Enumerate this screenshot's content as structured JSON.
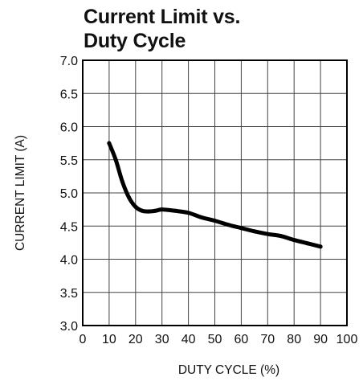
{
  "chart_data": {
    "type": "line",
    "title": [
      "Current Limit vs.",
      "Duty Cycle"
    ],
    "xlabel": "DUTY CYCLE (%)",
    "ylabel": "CURRENT LIMIT (A)",
    "xlim": [
      0,
      100
    ],
    "ylim": [
      3.0,
      7.0
    ],
    "x_ticks": [
      "0",
      "10",
      "20",
      "30",
      "40",
      "50",
      "60",
      "70",
      "80",
      "90",
      "100"
    ],
    "y_ticks": [
      "3.0",
      "3.5",
      "4.0",
      "4.5",
      "5.0",
      "5.5",
      "6.0",
      "6.5",
      "7.0"
    ],
    "grid": true,
    "series": [
      {
        "x": [
          10,
          12.5,
          15,
          17.5,
          20,
          22.5,
          25,
          27.5,
          30,
          35,
          40,
          45,
          50,
          55,
          60,
          65,
          70,
          75,
          80,
          85,
          90
        ],
        "y": [
          5.75,
          5.5,
          5.17,
          4.93,
          4.79,
          4.73,
          4.72,
          4.73,
          4.75,
          4.73,
          4.7,
          4.63,
          4.58,
          4.52,
          4.47,
          4.42,
          4.38,
          4.35,
          4.29,
          4.24,
          4.19
        ]
      }
    ],
    "colors": {
      "line": "#000000",
      "grid": "#444444",
      "frame": "#000000"
    }
  }
}
